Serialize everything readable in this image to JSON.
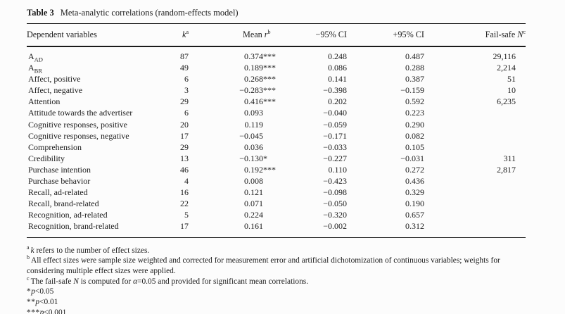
{
  "table": {
    "title_label": "Table 3",
    "title_text": "Meta-analytic correlations (random-effects model)",
    "columns": [
      {
        "prefix": "Dependent variables"
      },
      {
        "italic": "k",
        "sup": "a"
      },
      {
        "prefix": "Mean ",
        "italic": "r",
        "sup": "b"
      },
      {
        "prefix": "−95% CI"
      },
      {
        "prefix": "+95% CI"
      },
      {
        "prefix": "Fail-safe ",
        "italic": "N",
        "sup": "c"
      }
    ],
    "rows": [
      {
        "label": "A",
        "label_sub": "AD",
        "k": "87",
        "mean": "0.374",
        "stars": "***",
        "ci_low": "0.248",
        "ci_high": "0.487",
        "failsafe": "29,116"
      },
      {
        "label": "A",
        "label_sub": "BR",
        "k": "49",
        "mean": "0.189",
        "stars": "***",
        "ci_low": "0.086",
        "ci_high": "0.288",
        "failsafe": "2,214"
      },
      {
        "label": "Affect, positive",
        "k": "6",
        "mean": "0.268",
        "stars": "***",
        "ci_low": "0.141",
        "ci_high": "0.387",
        "failsafe": "51"
      },
      {
        "label": "Affect, negative",
        "k": "3",
        "mean": "−0.283",
        "stars": "***",
        "ci_low": "−0.398",
        "ci_high": "−0.159",
        "failsafe": "10"
      },
      {
        "label": "Attention",
        "k": "29",
        "mean": "0.416",
        "stars": "***",
        "ci_low": "0.202",
        "ci_high": "0.592",
        "failsafe": "6,235"
      },
      {
        "label": "Attitude towards the advertiser",
        "k": "6",
        "mean": "0.093",
        "stars": "",
        "ci_low": "−0.040",
        "ci_high": "0.223",
        "failsafe": ""
      },
      {
        "label": "Cognitive responses, positive",
        "k": "20",
        "mean": "0.119",
        "stars": "",
        "ci_low": "−0.059",
        "ci_high": "0.290",
        "failsafe": ""
      },
      {
        "label": "Cognitive responses, negative",
        "k": "17",
        "mean": "−0.045",
        "stars": "",
        "ci_low": "−0.171",
        "ci_high": "0.082",
        "failsafe": ""
      },
      {
        "label": "Comprehension",
        "k": "29",
        "mean": "0.036",
        "stars": "",
        "ci_low": "−0.033",
        "ci_high": "0.105",
        "failsafe": ""
      },
      {
        "label": "Credibility",
        "k": "13",
        "mean": "−0.130",
        "stars": "*",
        "ci_low": "−0.227",
        "ci_high": "−0.031",
        "failsafe": "311"
      },
      {
        "label": "Purchase intention",
        "k": "46",
        "mean": "0.192",
        "stars": "***",
        "ci_low": "0.110",
        "ci_high": "0.272",
        "failsafe": "2,817"
      },
      {
        "label": "Purchase behavior",
        "k": "4",
        "mean": "0.008",
        "stars": "",
        "ci_low": "−0.423",
        "ci_high": "0.436",
        "failsafe": ""
      },
      {
        "label": "Recall, ad-related",
        "k": "16",
        "mean": "0.121",
        "stars": "",
        "ci_low": "−0.098",
        "ci_high": "0.329",
        "failsafe": ""
      },
      {
        "label": "Recall, brand-related",
        "k": "22",
        "mean": "0.071",
        "stars": "",
        "ci_low": "−0.050",
        "ci_high": "0.190",
        "failsafe": ""
      },
      {
        "label": "Recognition, ad-related",
        "k": "5",
        "mean": "0.224",
        "stars": "",
        "ci_low": "−0.320",
        "ci_high": "0.657",
        "failsafe": ""
      },
      {
        "label": "Recognition, brand-related",
        "k": "17",
        "mean": "0.161",
        "stars": "",
        "ci_low": "−0.002",
        "ci_high": "0.312",
        "failsafe": ""
      }
    ]
  },
  "footnotes": [
    {
      "sup": "a",
      "parts": [
        {
          "i": 1,
          "t": "k"
        },
        {
          "t": " refers to the number of effect sizes."
        }
      ]
    },
    {
      "sup": "b",
      "parts": [
        {
          "t": "All effect sizes were sample size weighted and corrected for measurement error and artificial dichotomization of continuous variables; weights for considering multiple effect sizes were applied."
        }
      ]
    },
    {
      "sup": "c",
      "parts": [
        {
          "t": "The fail-safe "
        },
        {
          "i": 1,
          "t": "N"
        },
        {
          "t": " is computed for "
        },
        {
          "i": 1,
          "t": "α"
        },
        {
          "t": "=0.05 and provided for significant mean correlations."
        }
      ]
    },
    {
      "pre": "*",
      "parts": [
        {
          "i": 1,
          "t": "p"
        },
        {
          "t": "<0.05"
        }
      ]
    },
    {
      "pre": "**",
      "parts": [
        {
          "i": 1,
          "t": "p"
        },
        {
          "t": "<0.01"
        }
      ]
    },
    {
      "pre": "***",
      "parts": [
        {
          "i": 1,
          "t": "p"
        },
        {
          "t": "<0.001"
        }
      ]
    }
  ]
}
